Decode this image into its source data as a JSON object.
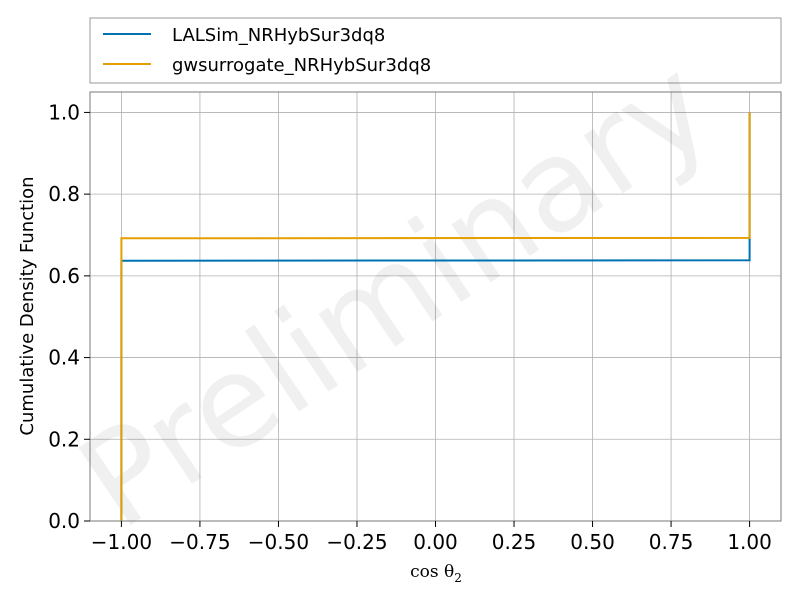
{
  "chart_data": {
    "type": "line",
    "title": "",
    "xlabel": "cos θ",
    "xlabel_subscript": "2",
    "ylabel": "Cumulative Density Function",
    "xlim": [
      -1.1,
      1.1
    ],
    "ylim": [
      0.0,
      1.05
    ],
    "x_ticks": [
      "−1.00",
      "−0.75",
      "−0.50",
      "−0.25",
      "0.00",
      "0.25",
      "0.50",
      "0.75",
      "1.00"
    ],
    "x_tick_values": [
      -1.0,
      -0.75,
      -0.5,
      -0.25,
      0.0,
      0.25,
      0.5,
      0.75,
      1.0
    ],
    "y_ticks": [
      "0.0",
      "0.2",
      "0.4",
      "0.6",
      "0.8",
      "1.0"
    ],
    "y_tick_values": [
      0.0,
      0.2,
      0.4,
      0.6,
      0.8,
      1.0
    ],
    "grid": true,
    "legend_position": "top, outside plot area",
    "watermark": "Preliminary",
    "series": [
      {
        "name": "LALSim_NRHybSur3dq8",
        "color": "#0072b2",
        "x": [
          -1.0,
          -1.0,
          1.0,
          1.0
        ],
        "y": [
          0.0,
          0.637,
          0.638,
          1.0
        ]
      },
      {
        "name": "gwsurrogate_NRHybSur3dq8",
        "color": "#e69f00",
        "x": [
          -1.0,
          -1.0,
          1.0,
          1.0
        ],
        "y": [
          0.0,
          0.692,
          0.693,
          1.0
        ]
      }
    ]
  }
}
